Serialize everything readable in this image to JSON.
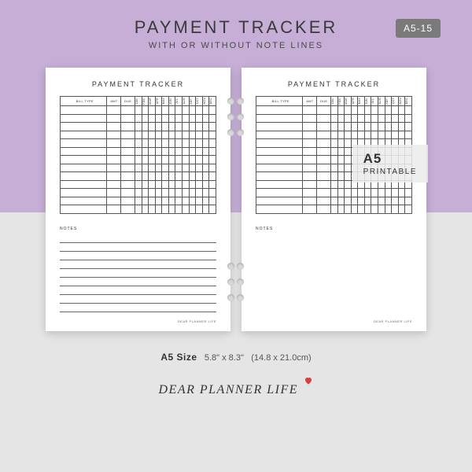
{
  "colors": {
    "bg_top": "#c6aed6",
    "bg_bottom": "#e5e5e5",
    "sku_bg": "#7a7a7a",
    "page_bg": "#ffffff",
    "grid": "#555555",
    "heart": "#d44141"
  },
  "header": {
    "title": "PAYMENT TRACKER",
    "subtitle": "WITH OR WITHOUT NOTE LINES",
    "sku": "A5-15"
  },
  "tracker": {
    "page_title": "PAYMENT TRACKER",
    "columns": {
      "bill": "BILL TYPE",
      "amt": "AMT",
      "due": "DUE"
    },
    "months": [
      "JAN",
      "FEB",
      "MAR",
      "APR",
      "MAY",
      "JUN",
      "JUL",
      "AUG",
      "SEP",
      "OCT",
      "NOV",
      "DEC"
    ],
    "row_count": 13,
    "notes_label": "NOTES",
    "notes_lines_count": 9,
    "footer": "DEAR PLANNER LIFE"
  },
  "badge": {
    "line1": "A5",
    "line2": "PRINTABLE"
  },
  "size": {
    "label": "A5 Size",
    "inches": "5.8\" x 8.3\"",
    "cm": "(14.8 x 21.0cm)"
  },
  "brand": "DEAR PLANNER LIFE"
}
